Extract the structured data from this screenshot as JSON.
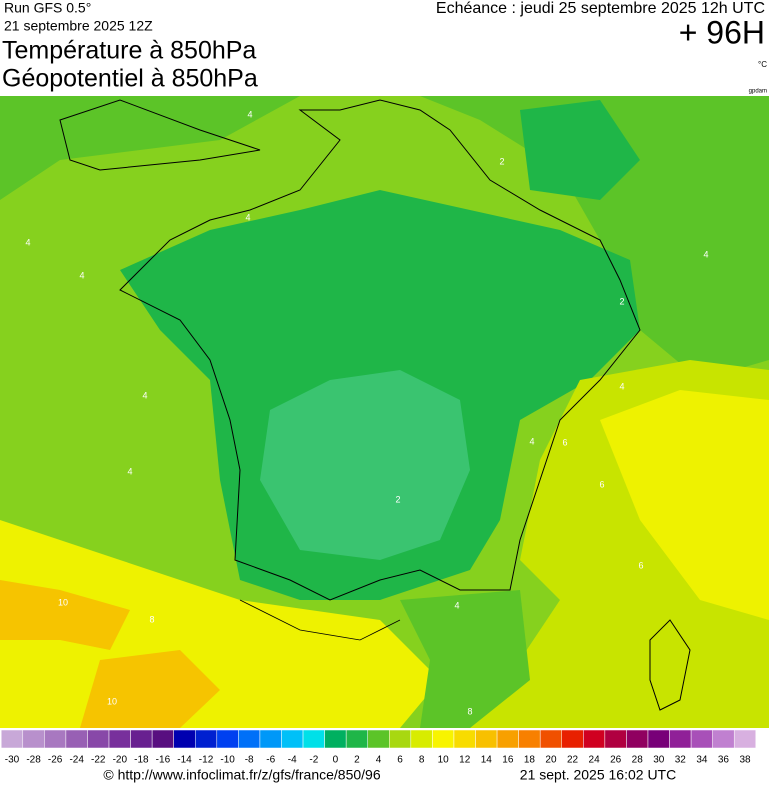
{
  "header": {
    "run": "Run GFS 0.5°",
    "run_date": "21 septembre 2025 12Z",
    "valid": "Echéance : jeudi 25 septembre 2025 12h UTC",
    "lead": "+ 96H",
    "title1": "Température à 850hPa",
    "title2": "Géopotentiel à 850hPa",
    "unit": "°C",
    "unit2": "gpdam"
  },
  "map": {
    "contour_labels": [
      "4",
      "4",
      "4",
      "4",
      "4",
      "4",
      "2",
      "2",
      "4",
      "2",
      "4",
      "4",
      "6",
      "6",
      "10",
      "8",
      "10",
      "4",
      "6",
      "8"
    ]
  },
  "colorbar": {
    "ticks": [
      -30,
      -28,
      -26,
      -24,
      -22,
      -20,
      -18,
      -16,
      -14,
      -12,
      -10,
      -8,
      -6,
      -4,
      -2,
      0,
      2,
      4,
      6,
      8,
      10,
      12,
      14,
      16,
      18,
      20,
      22,
      24,
      26,
      28,
      30,
      32,
      34,
      36,
      38
    ],
    "colors": [
      "#c8a8d8",
      "#b890cc",
      "#a878c0",
      "#9860b4",
      "#8848a8",
      "#78309c",
      "#682090",
      "#580f80",
      "#0000b0",
      "#0020d0",
      "#0040f0",
      "#0070f8",
      "#0098f8",
      "#00c0f8",
      "#00e0e8",
      "#00b060",
      "#1fb648",
      "#5cc428",
      "#a8d810",
      "#d8ec00",
      "#f8f400",
      "#f8dc00",
      "#f8c000",
      "#f8a000",
      "#f88000",
      "#f05000",
      "#e82000",
      "#d00020",
      "#b00040",
      "#900060",
      "#780078",
      "#902098",
      "#a850b8",
      "#c080d0",
      "#d8b0e0"
    ]
  },
  "footer": {
    "url": "© http://www.infoclimat.fr/z/gfs/france/850/96",
    "time": "21 sept. 2025 16:02 UTC"
  }
}
